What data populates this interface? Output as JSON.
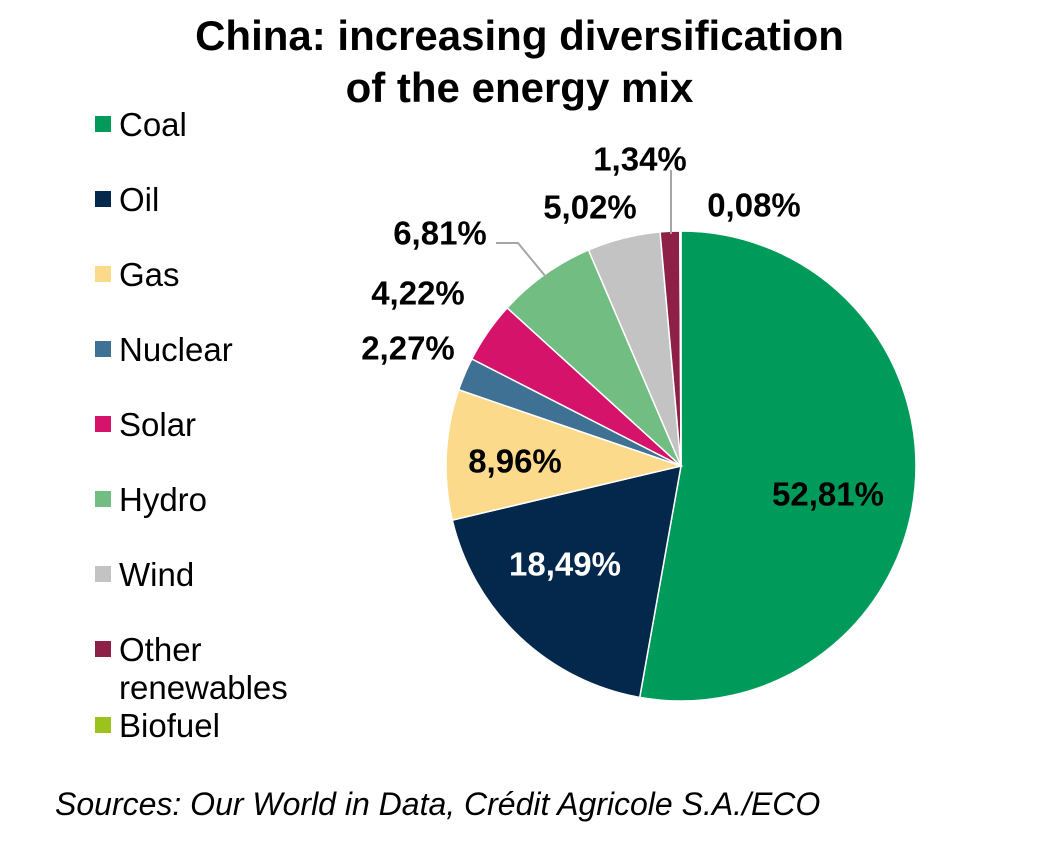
{
  "chart_data": {
    "type": "pie",
    "title": "China: increasing diversification of the energy mix",
    "title_lines": [
      "China: increasing diversification",
      "of the energy mix"
    ],
    "slices": [
      {
        "name": "Coal",
        "value": 52.81,
        "label": "52,81%",
        "color": "#009A5B"
      },
      {
        "name": "Oil",
        "value": 18.49,
        "label": "18,49%",
        "color": "#03284B"
      },
      {
        "name": "Gas",
        "value": 8.96,
        "label": "8,96%",
        "color": "#FCDA8B"
      },
      {
        "name": "Nuclear",
        "value": 2.27,
        "label": "2,27%",
        "color": "#3F7195"
      },
      {
        "name": "Solar",
        "value": 4.22,
        "label": "4,22%",
        "color": "#D5136A"
      },
      {
        "name": "Hydro",
        "value": 6.81,
        "label": "6,81%",
        "color": "#72BD82"
      },
      {
        "name": "Wind",
        "value": 5.02,
        "label": "5,02%",
        "color": "#C3C3C3"
      },
      {
        "name": "Other renewables",
        "value": 1.34,
        "label": "1,34%",
        "color": "#8E1F47"
      },
      {
        "name": "Biofuel",
        "value": 0.08,
        "label": "0,08%",
        "color": "#9BC31B"
      }
    ],
    "legend_position": "left"
  },
  "source": "Sources: Our World in Data, Crédit Agricole S.A./ECO"
}
